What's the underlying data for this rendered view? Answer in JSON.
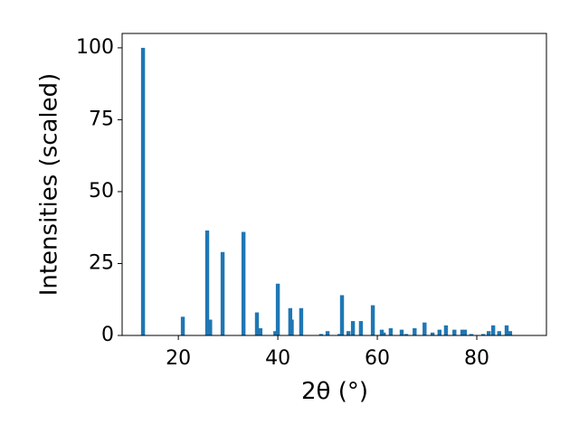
{
  "chart_data": {
    "type": "bar",
    "xlabel": "2θ (°)",
    "ylabel": "Intensities (scaled)",
    "color": "#1f77b4",
    "grid": false,
    "x": [
      12.9,
      20.9,
      25.8,
      26.4,
      28.9,
      33.1,
      35.8,
      36.5,
      39.5,
      40.0,
      42.5,
      42.8,
      44.7,
      48.7,
      50.0,
      52.4,
      52.9,
      54.2,
      55.1,
      56.7,
      59.1,
      60.9,
      61.3,
      62.7,
      64.9,
      65.8,
      67.5,
      69.5,
      71.1,
      72.5,
      73.8,
      75.5,
      77.1,
      77.6,
      78.9,
      81.3,
      82.4,
      83.3,
      84.5,
      86.0,
      86.7
    ],
    "values": [
      100,
      6.5,
      36.5,
      5.5,
      29,
      36,
      8,
      2.5,
      1.5,
      18,
      9.5,
      5.5,
      9.5,
      0.5,
      1.5,
      0.5,
      14,
      1.5,
      5,
      5,
      10.5,
      2,
      1,
      2.5,
      2,
      0.5,
      2.5,
      4.5,
      1,
      2,
      3.5,
      2,
      2,
      2,
      0.5,
      0.5,
      1.5,
      3.5,
      1.5,
      3.5,
      1.5
    ],
    "xlim": [
      8.7,
      94
    ],
    "ylim": [
      0,
      105
    ],
    "xticks": [
      20,
      40,
      60,
      80
    ],
    "yticks": [
      0,
      25,
      50,
      75,
      100
    ]
  }
}
